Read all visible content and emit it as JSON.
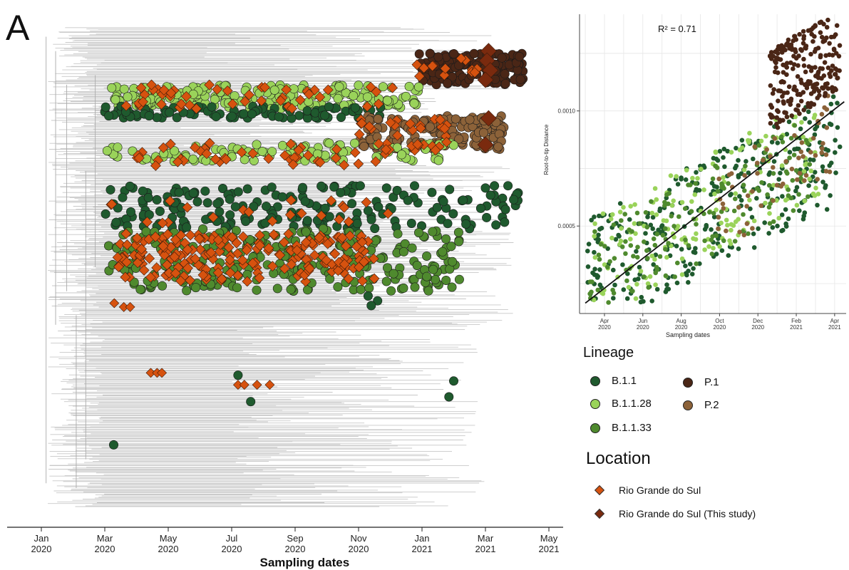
{
  "panel_letter": "A",
  "colors": {
    "B.1.1": "#1f5a2e",
    "B.1.1.28": "#9ad35a",
    "B.1.1.33": "#4f8a2e",
    "P.1": "#4a2616",
    "P.2": "#8c6239",
    "rgs": "#d6520f",
    "rgs_study": "#7a2a0e",
    "branches": "#c8c8c8"
  },
  "chart_data": [
    {
      "type": "scatter",
      "description_kind": "time-scaled phylogeny",
      "xlabel": "Sampling dates",
      "x_ticks": [
        {
          "m": 0,
          "l1": "Jan",
          "l2": "2020"
        },
        {
          "m": 2,
          "l1": "Mar",
          "l2": "2020"
        },
        {
          "m": 4,
          "l1": "May",
          "l2": "2020"
        },
        {
          "m": 6,
          "l1": "Jul",
          "l2": "2020"
        },
        {
          "m": 8,
          "l1": "Sep",
          "l2": "2020"
        },
        {
          "m": 10,
          "l1": "Nov",
          "l2": "2020"
        },
        {
          "m": 12,
          "l1": "Jan",
          "l2": "2021"
        },
        {
          "m": 14,
          "l1": "Mar",
          "l2": "2021"
        },
        {
          "m": 16,
          "l1": "May",
          "l2": "2021"
        }
      ],
      "xlim": [
        0,
        16
      ],
      "clusters": [
        {
          "lineage": "P.1",
          "x0": 11.9,
          "x1": 15.2,
          "y0": 0.055,
          "y1": 0.12,
          "n": 160
        },
        {
          "lineage": "B.1.1.28",
          "x0": 2.2,
          "x1": 12.0,
          "y0": 0.12,
          "y1": 0.17,
          "n": 190
        },
        {
          "lineage": "B.1.1",
          "x0": 2.0,
          "x1": 10.8,
          "y0": 0.165,
          "y1": 0.19,
          "n": 90
        },
        {
          "lineage": "P.2",
          "x0": 10.0,
          "x1": 14.6,
          "y0": 0.185,
          "y1": 0.255,
          "n": 170
        },
        {
          "lineage": "B.1.1.28",
          "x0": 2.0,
          "x1": 13.0,
          "y0": 0.24,
          "y1": 0.28,
          "n": 110
        },
        {
          "lineage": "B.1.1",
          "x0": 2.0,
          "x1": 15.3,
          "y0": 0.33,
          "y1": 0.42,
          "n": 200
        },
        {
          "lineage": "B.1.1.33",
          "x0": 2.1,
          "x1": 13.2,
          "y0": 0.42,
          "y1": 0.55,
          "n": 280
        }
      ],
      "rgs_clusters": [
        {
          "x0": 11.8,
          "x1": 14.2,
          "y0": 0.06,
          "y1": 0.11,
          "n": 14
        },
        {
          "x0": 2.6,
          "x1": 11.3,
          "y0": 0.12,
          "y1": 0.17,
          "n": 45
        },
        {
          "x0": 10.0,
          "x1": 12.8,
          "y0": 0.19,
          "y1": 0.26,
          "n": 30
        },
        {
          "x0": 3.0,
          "x1": 11.2,
          "y0": 0.24,
          "y1": 0.29,
          "n": 45
        },
        {
          "x0": 2.0,
          "x1": 11.0,
          "y0": 0.36,
          "y1": 0.41,
          "n": 22
        },
        {
          "x0": 2.4,
          "x1": 10.5,
          "y0": 0.43,
          "y1": 0.53,
          "n": 200
        }
      ],
      "study_points": [
        {
          "x": 14.1,
          "y": 0.05
        },
        {
          "x": 14.05,
          "y": 0.07
        },
        {
          "x": 14.15,
          "y": 0.09
        },
        {
          "x": 14.0,
          "y": 0.11
        },
        {
          "x": 14.1,
          "y": 0.19
        },
        {
          "x": 14.0,
          "y": 0.245
        }
      ],
      "extra_points": [
        {
          "type": "rgs",
          "x": 3.45,
          "y": 0.72
        },
        {
          "type": "rgs",
          "x": 3.65,
          "y": 0.72
        },
        {
          "type": "rgs",
          "x": 3.8,
          "y": 0.72
        },
        {
          "type": "rgs",
          "x": 6.2,
          "y": 0.745
        },
        {
          "type": "rgs",
          "x": 6.4,
          "y": 0.745
        },
        {
          "type": "rgs",
          "x": 6.8,
          "y": 0.745
        },
        {
          "type": "rgs",
          "x": 7.2,
          "y": 0.745
        },
        {
          "type": "B.1.1",
          "x": 6.2,
          "y": 0.725
        },
        {
          "type": "B.1.1",
          "x": 6.6,
          "y": 0.78
        },
        {
          "type": "B.1.1",
          "x": 13.0,
          "y": 0.737
        },
        {
          "type": "B.1.1",
          "x": 12.85,
          "y": 0.77
        },
        {
          "type": "B.1.1",
          "x": 2.28,
          "y": 0.87
        },
        {
          "type": "rgs",
          "x": 2.3,
          "y": 0.575
        },
        {
          "type": "rgs",
          "x": 2.6,
          "y": 0.583
        },
        {
          "type": "rgs",
          "x": 2.8,
          "y": 0.583
        },
        {
          "type": "B.1.1",
          "x": 10.3,
          "y": 0.56
        },
        {
          "type": "B.1.1",
          "x": 10.6,
          "y": 0.57
        },
        {
          "type": "B.1.1",
          "x": 10.4,
          "y": 0.58
        }
      ]
    },
    {
      "type": "scatter",
      "annotation": "R² = 0.71",
      "xlabel": "Sampling dates",
      "ylabel": "Root-to-tip Distance",
      "x_ticks": [
        {
          "m": 3,
          "l1": "Apr",
          "l2": "2020"
        },
        {
          "m": 5,
          "l1": "Jun",
          "l2": "2020"
        },
        {
          "m": 7,
          "l1": "Aug",
          "l2": "2020"
        },
        {
          "m": 9,
          "l1": "Oct",
          "l2": "2020"
        },
        {
          "m": 11,
          "l1": "Dec",
          "l2": "2020"
        },
        {
          "m": 13,
          "l1": "Feb",
          "l2": "2021"
        },
        {
          "m": 15,
          "l1": "Apr",
          "l2": "2021"
        }
      ],
      "y_ticks": [
        {
          "v": 0.0005,
          "l": "0.0005"
        },
        {
          "v": 0.001,
          "l": "0.0010"
        }
      ],
      "xlim": [
        1.7,
        15.6
      ],
      "ylim": [
        0.00012,
        0.00142
      ],
      "grid": true,
      "regression": {
        "x0": 2.0,
        "y0": 0.000165,
        "x1": 15.5,
        "y1": 0.00104
      },
      "point_groups": [
        {
          "lineage": "B.1.1",
          "x0": 2.0,
          "x1": 15.3,
          "y_mid0": 0.00027,
          "y_mid1": 0.00085,
          "spread": 0.00025,
          "n": 340
        },
        {
          "lineage": "B.1.1.28",
          "x0": 2.4,
          "x1": 14.2,
          "y_mid0": 0.0003,
          "y_mid1": 0.00085,
          "spread": 0.00023,
          "n": 170
        },
        {
          "lineage": "B.1.1.33",
          "x0": 2.2,
          "x1": 13.8,
          "y_mid0": 0.00028,
          "y_mid1": 0.00078,
          "spread": 0.0002,
          "n": 150
        },
        {
          "lineage": "P.2",
          "x0": 8.8,
          "x1": 14.8,
          "y_mid0": 0.00055,
          "y_mid1": 0.0009,
          "spread": 0.00018,
          "n": 60
        },
        {
          "lineage": "P.1",
          "x0": 11.6,
          "x1": 15.3,
          "y_mid0": 0.00108,
          "y_mid1": 0.00128,
          "spread": 0.00018,
          "n": 230
        }
      ]
    }
  ],
  "legend": {
    "lineage_title": "Lineage",
    "lineages": [
      {
        "name": "B.1.1",
        "color": "#1f5a2e"
      },
      {
        "name": "B.1.1.28",
        "color": "#9ad35a"
      },
      {
        "name": "B.1.1.33",
        "color": "#4f8a2e"
      },
      {
        "name": "P.1",
        "color": "#4a2616"
      },
      {
        "name": "P.2",
        "color": "#8c6239"
      }
    ],
    "location_title": "Location",
    "locations": [
      {
        "name": "Rio Grande do Sul",
        "color": "#d6520f"
      },
      {
        "name": "Rio Grande do Sul (This study)",
        "color": "#7a2a0e"
      }
    ]
  }
}
